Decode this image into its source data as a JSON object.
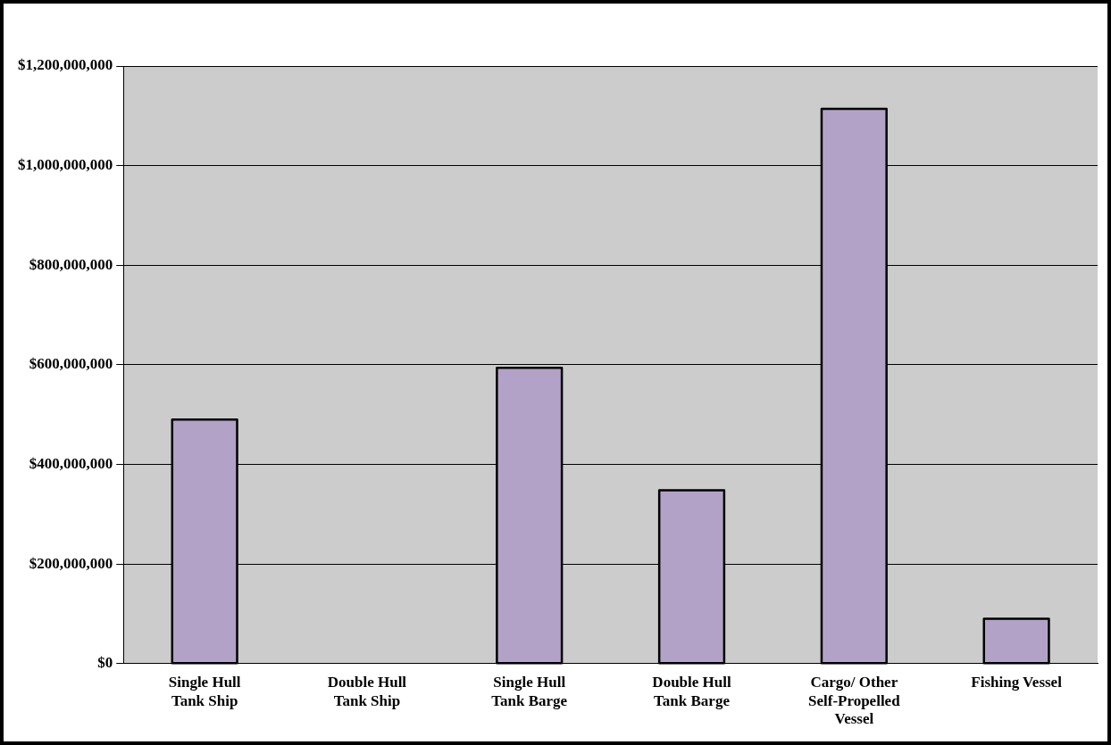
{
  "chart_data": {
    "type": "bar",
    "categories": [
      "Single Hull\nTank Ship",
      "Double Hull\nTank Ship",
      "Single Hull\nTank Barge",
      "Double Hull\nTank Barge",
      "Cargo/ Other\nSelf-Propelled\nVessel",
      "Fishing Vessel"
    ],
    "values": [
      490000000,
      0,
      594000000,
      348000000,
      1114000000,
      90000000
    ],
    "color": "#b3a2c7",
    "ylim": [
      0,
      1200000000
    ],
    "yticks": [
      {
        "value": 0,
        "label": "$0"
      },
      {
        "value": 200000000,
        "label": "$200,000,000"
      },
      {
        "value": 400000000,
        "label": "$400,000,000"
      },
      {
        "value": 600000000,
        "label": "$600,000,000"
      },
      {
        "value": 800000000,
        "label": "$800,000,000"
      },
      {
        "value": 1000000000,
        "label": "$1,000,000,000"
      },
      {
        "value": 1200000000,
        "label": "$1,200,000,000"
      }
    ],
    "grid": "y",
    "legend": false
  }
}
